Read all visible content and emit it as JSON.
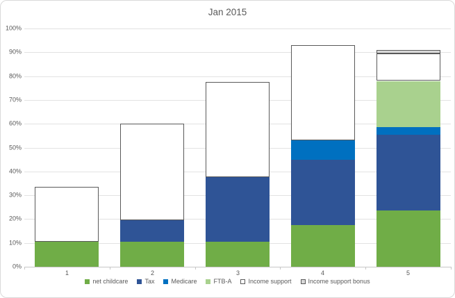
{
  "chart_data": {
    "type": "bar",
    "stacked": true,
    "title": "Jan 2015",
    "categories": [
      "1",
      "2",
      "3",
      "4",
      "5"
    ],
    "series": [
      {
        "name": "net childcare",
        "color": "#70AD47",
        "outlined": false,
        "values": [
          10.5,
          10.5,
          10.5,
          17.5,
          23.5
        ]
      },
      {
        "name": "Tax",
        "color": "#2F5496",
        "outlined": false,
        "values": [
          0,
          9,
          27,
          27.5,
          32
        ]
      },
      {
        "name": "Medicare",
        "color": "#0070C0",
        "outlined": false,
        "values": [
          0,
          0,
          0,
          8,
          3
        ]
      },
      {
        "name": "FTB-A",
        "color": "#A9D18E",
        "outlined": false,
        "values": [
          0,
          0,
          0,
          0,
          19.5
        ]
      },
      {
        "name": "Income support",
        "color": "#FFFFFF",
        "outlined": true,
        "values": [
          23,
          40.5,
          40,
          40,
          11.5
        ]
      },
      {
        "name": "Income support bonus",
        "color": "#D9D9D9",
        "outlined": true,
        "values": [
          0,
          0,
          0,
          0,
          1.5
        ]
      }
    ],
    "bar_totals": [
      33.5,
      60,
      77.5,
      93,
      91
    ],
    "ylim": [
      0,
      100
    ],
    "ytick_step": 10,
    "ytick_labels": [
      "0%",
      "10%",
      "20%",
      "30%",
      "40%",
      "50%",
      "60%",
      "70%",
      "80%",
      "90%",
      "100%"
    ],
    "grid": true,
    "legend_position": "bottom",
    "outline_color": "#595959",
    "label_color": "#595959"
  }
}
